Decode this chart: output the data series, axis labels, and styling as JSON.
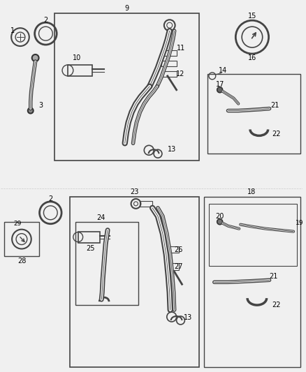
{
  "bg_color": "#f5f5f5",
  "line_color": "#444444",
  "text_color": "#000000",
  "fig_width": 4.38,
  "fig_height": 5.33,
  "dpi": 100
}
